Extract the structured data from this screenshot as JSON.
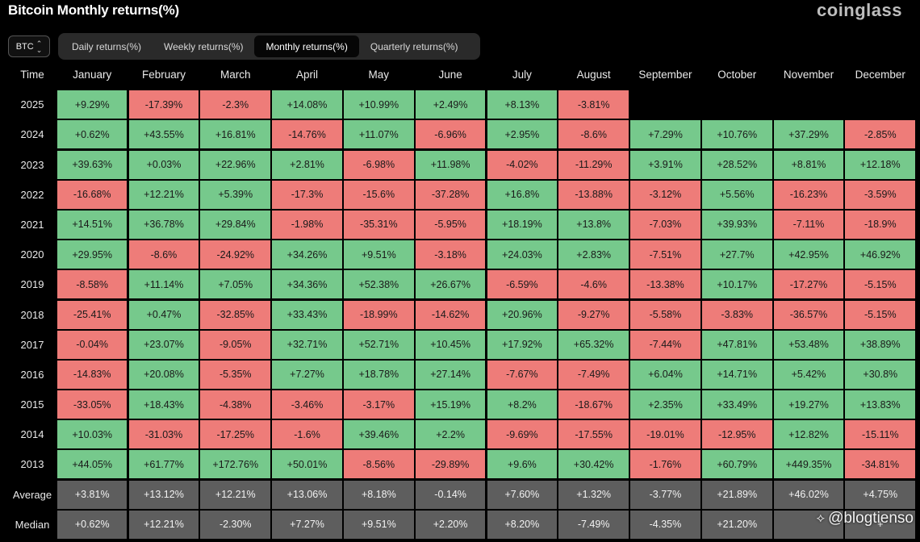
{
  "title": "Bitcoin Monthly returns(%)",
  "logo": "coinglass",
  "asset": {
    "value": "BTC",
    "chevron_up": "⌃",
    "chevron_down": "⌄"
  },
  "tabs": [
    {
      "label": "Daily returns(%)",
      "active": false
    },
    {
      "label": "Weekly returns(%)",
      "active": false
    },
    {
      "label": "Monthly returns(%)",
      "active": true
    },
    {
      "label": "Quarterly returns(%)",
      "active": false
    }
  ],
  "table": {
    "time_label": "Time",
    "months": [
      "January",
      "February",
      "March",
      "April",
      "May",
      "June",
      "July",
      "August",
      "September",
      "October",
      "November",
      "December"
    ],
    "rows": [
      {
        "year": "2025",
        "values": [
          "+9.29%",
          "-17.39%",
          "-2.3%",
          "+14.08%",
          "+10.99%",
          "+2.49%",
          "+8.13%",
          "-3.81%",
          "",
          "",
          "",
          ""
        ]
      },
      {
        "year": "2024",
        "values": [
          "+0.62%",
          "+43.55%",
          "+16.81%",
          "-14.76%",
          "+11.07%",
          "-6.96%",
          "+2.95%",
          "-8.6%",
          "+7.29%",
          "+10.76%",
          "+37.29%",
          "-2.85%"
        ]
      },
      {
        "year": "2023",
        "values": [
          "+39.63%",
          "+0.03%",
          "+22.96%",
          "+2.81%",
          "-6.98%",
          "+11.98%",
          "-4.02%",
          "-11.29%",
          "+3.91%",
          "+28.52%",
          "+8.81%",
          "+12.18%"
        ]
      },
      {
        "year": "2022",
        "values": [
          "-16.68%",
          "+12.21%",
          "+5.39%",
          "-17.3%",
          "-15.6%",
          "-37.28%",
          "+16.8%",
          "-13.88%",
          "-3.12%",
          "+5.56%",
          "-16.23%",
          "-3.59%"
        ]
      },
      {
        "year": "2021",
        "values": [
          "+14.51%",
          "+36.78%",
          "+29.84%",
          "-1.98%",
          "-35.31%",
          "-5.95%",
          "+18.19%",
          "+13.8%",
          "-7.03%",
          "+39.93%",
          "-7.11%",
          "-18.9%"
        ]
      },
      {
        "year": "2020",
        "values": [
          "+29.95%",
          "-8.6%",
          "-24.92%",
          "+34.26%",
          "+9.51%",
          "-3.18%",
          "+24.03%",
          "+2.83%",
          "-7.51%",
          "+27.7%",
          "+42.95%",
          "+46.92%"
        ]
      },
      {
        "year": "2019",
        "values": [
          "-8.58%",
          "+11.14%",
          "+7.05%",
          "+34.36%",
          "+52.38%",
          "+26.67%",
          "-6.59%",
          "-4.6%",
          "-13.38%",
          "+10.17%",
          "-17.27%",
          "-5.15%"
        ]
      },
      {
        "year": "2018",
        "values": [
          "-25.41%",
          "+0.47%",
          "-32.85%",
          "+33.43%",
          "-18.99%",
          "-14.62%",
          "+20.96%",
          "-9.27%",
          "-5.58%",
          "-3.83%",
          "-36.57%",
          "-5.15%"
        ]
      },
      {
        "year": "2017",
        "values": [
          "-0.04%",
          "+23.07%",
          "-9.05%",
          "+32.71%",
          "+52.71%",
          "+10.45%",
          "+17.92%",
          "+65.32%",
          "-7.44%",
          "+47.81%",
          "+53.48%",
          "+38.89%"
        ]
      },
      {
        "year": "2016",
        "values": [
          "-14.83%",
          "+20.08%",
          "-5.35%",
          "+7.27%",
          "+18.78%",
          "+27.14%",
          "-7.67%",
          "-7.49%",
          "+6.04%",
          "+14.71%",
          "+5.42%",
          "+30.8%"
        ]
      },
      {
        "year": "2015",
        "values": [
          "-33.05%",
          "+18.43%",
          "-4.38%",
          "-3.46%",
          "-3.17%",
          "+15.19%",
          "+8.2%",
          "-18.67%",
          "+2.35%",
          "+33.49%",
          "+19.27%",
          "+13.83%"
        ]
      },
      {
        "year": "2014",
        "values": [
          "+10.03%",
          "-31.03%",
          "-17.25%",
          "-1.6%",
          "+39.46%",
          "+2.2%",
          "-9.69%",
          "-17.55%",
          "-19.01%",
          "-12.95%",
          "+12.82%",
          "-15.11%"
        ]
      },
      {
        "year": "2013",
        "values": [
          "+44.05%",
          "+61.77%",
          "+172.76%",
          "+50.01%",
          "-8.56%",
          "-29.89%",
          "+9.6%",
          "+30.42%",
          "-1.76%",
          "+60.79%",
          "+449.35%",
          "-34.81%"
        ]
      }
    ],
    "stats": [
      {
        "label": "Average",
        "values": [
          "+3.81%",
          "+13.12%",
          "+12.21%",
          "+13.06%",
          "+8.18%",
          "-0.14%",
          "+7.60%",
          "+1.32%",
          "-3.77%",
          "+21.89%",
          "+46.02%",
          "+4.75%"
        ]
      },
      {
        "label": "Median",
        "values": [
          "+0.62%",
          "+12.21%",
          "-2.30%",
          "+7.27%",
          "+9.51%",
          "+2.20%",
          "+8.20%",
          "-7.49%",
          "-4.35%",
          "+21.20%",
          "",
          "+"
        ]
      }
    ]
  },
  "colors": {
    "positive": "#76c98c",
    "negative": "#ee7c79",
    "stat": "#5e5e5e",
    "background": "#000000"
  },
  "watermark": {
    "icon": "logo-icon",
    "text": "@blogtienso"
  }
}
